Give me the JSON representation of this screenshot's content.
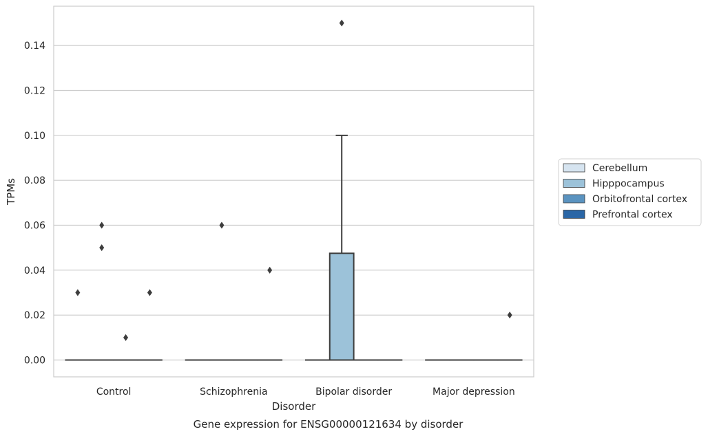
{
  "chart_data": {
    "type": "box",
    "title": "",
    "caption": "Gene expression for ENSG00000121634 by disorder",
    "xlabel": "Disorder",
    "ylabel": "TPMs",
    "categories": [
      "Control",
      "Schizophrenia",
      "Bipolar disorder",
      "Major depression"
    ],
    "ylim": [
      -0.0075,
      0.1575
    ],
    "yticks": [
      0.0,
      0.02,
      0.04,
      0.06,
      0.08,
      0.1,
      0.12,
      0.14
    ],
    "ytick_labels": [
      "0.00",
      "0.02",
      "0.04",
      "0.06",
      "0.08",
      "0.10",
      "0.12",
      "0.14"
    ],
    "grid": true,
    "legend_position": "right",
    "series": [
      {
        "name": "Cerebellum",
        "color": "#d6e4f0",
        "boxes": [
          {
            "q1": 0,
            "median": 0,
            "q3": 0,
            "whisker_low": 0,
            "whisker_high": 0,
            "outliers": [
              0.03
            ]
          },
          {
            "q1": 0,
            "median": 0,
            "q3": 0,
            "whisker_low": 0,
            "whisker_high": 0,
            "outliers": []
          },
          {
            "q1": 0,
            "median": 0,
            "q3": 0,
            "whisker_low": 0,
            "whisker_high": 0,
            "outliers": []
          },
          {
            "q1": 0,
            "median": 0,
            "q3": 0,
            "whisker_low": 0,
            "whisker_high": 0,
            "outliers": []
          }
        ]
      },
      {
        "name": "Hipppocampus",
        "color": "#9cc2d9",
        "boxes": [
          {
            "q1": 0,
            "median": 0,
            "q3": 0,
            "whisker_low": 0,
            "whisker_high": 0,
            "outliers": [
              0.06,
              0.05
            ]
          },
          {
            "q1": 0,
            "median": 0,
            "q3": 0,
            "whisker_low": 0,
            "whisker_high": 0,
            "outliers": [
              0.06
            ]
          },
          {
            "q1": 0,
            "median": 0,
            "q3": 0.0475,
            "whisker_low": 0,
            "whisker_high": 0.1,
            "outliers": [
              0.15
            ]
          },
          {
            "q1": 0,
            "median": 0,
            "q3": 0,
            "whisker_low": 0,
            "whisker_high": 0,
            "outliers": []
          }
        ]
      },
      {
        "name": "Orbitofrontal cortex",
        "color": "#5a93c0",
        "boxes": [
          {
            "q1": 0,
            "median": 0,
            "q3": 0,
            "whisker_low": 0,
            "whisker_high": 0,
            "outliers": [
              0.01
            ]
          },
          {
            "q1": 0,
            "median": 0,
            "q3": 0,
            "whisker_low": 0,
            "whisker_high": 0,
            "outliers": []
          },
          {
            "q1": 0,
            "median": 0,
            "q3": 0,
            "whisker_low": 0,
            "whisker_high": 0,
            "outliers": []
          },
          {
            "q1": 0,
            "median": 0,
            "q3": 0,
            "whisker_low": 0,
            "whisker_high": 0,
            "outliers": []
          }
        ]
      },
      {
        "name": "Prefrontal cortex",
        "color": "#2a66a6",
        "boxes": [
          {
            "q1": 0,
            "median": 0,
            "q3": 0,
            "whisker_low": 0,
            "whisker_high": 0,
            "outliers": [
              0.03
            ]
          },
          {
            "q1": 0,
            "median": 0,
            "q3": 0,
            "whisker_low": 0,
            "whisker_high": 0,
            "outliers": [
              0.04
            ]
          },
          {
            "q1": 0,
            "median": 0,
            "q3": 0,
            "whisker_low": 0,
            "whisker_high": 0,
            "outliers": []
          },
          {
            "q1": 0,
            "median": 0,
            "q3": 0,
            "whisker_low": 0,
            "whisker_high": 0,
            "outliers": [
              0.02
            ]
          }
        ]
      }
    ]
  }
}
